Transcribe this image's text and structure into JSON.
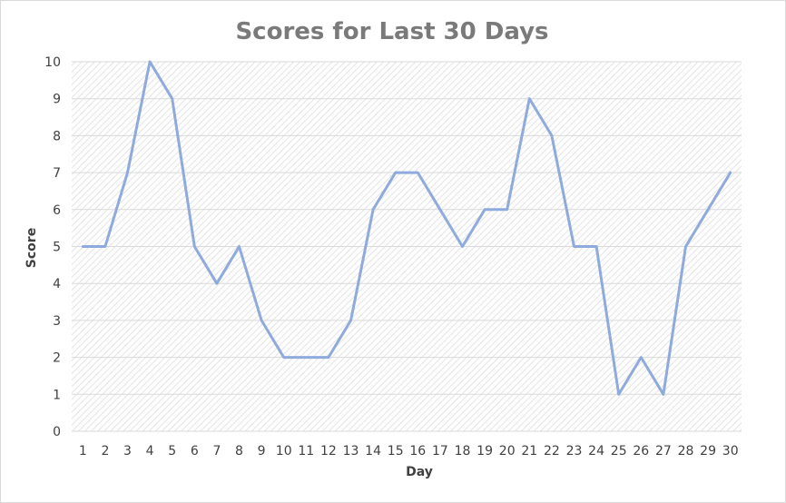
{
  "chart_data": {
    "type": "line",
    "title": "Scores for Last 30 Days",
    "xlabel": "Day",
    "ylabel": "Score",
    "x": [
      1,
      2,
      3,
      4,
      5,
      6,
      7,
      8,
      9,
      10,
      11,
      12,
      13,
      14,
      15,
      16,
      17,
      18,
      19,
      20,
      21,
      22,
      23,
      24,
      25,
      26,
      27,
      28,
      29,
      30
    ],
    "series": [
      {
        "values": [
          5,
          5,
          7,
          10,
          9,
          5,
          4,
          5,
          3,
          2,
          2,
          2,
          3,
          6,
          7,
          7,
          6,
          5,
          6,
          6,
          9,
          8,
          5,
          5,
          1,
          2,
          1,
          5,
          6,
          7
        ],
        "color": "#8faadc"
      }
    ],
    "ylim": [
      0,
      10
    ],
    "yticks": [
      0,
      1,
      2,
      3,
      4,
      5,
      6,
      7,
      8,
      9,
      10
    ],
    "grid": true,
    "legend": "none",
    "plot_background": "hatched light gray"
  }
}
